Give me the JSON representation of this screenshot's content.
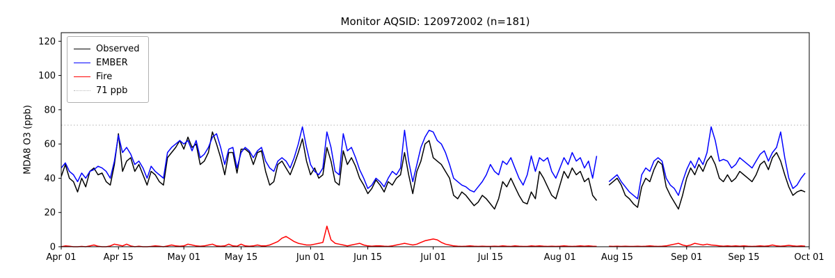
{
  "chart_data": {
    "type": "line",
    "title": "Monitor AQSID: 120972002 (n=181)",
    "xlabel": "",
    "ylabel": "MDA8 O3 (ppb)",
    "ylim": [
      0,
      125
    ],
    "yticks": [
      0,
      20,
      40,
      60,
      80,
      100,
      120
    ],
    "x_range_days": [
      0,
      183
    ],
    "x_ticks": [
      {
        "label": "Apr 01",
        "day": 0
      },
      {
        "label": "Apr 15",
        "day": 14
      },
      {
        "label": "May 01",
        "day": 30
      },
      {
        "label": "May 15",
        "day": 44
      },
      {
        "label": "Jun 01",
        "day": 61
      },
      {
        "label": "Jun 15",
        "day": 75
      },
      {
        "label": "Jul 01",
        "day": 91
      },
      {
        "label": "Jul 15",
        "day": 105
      },
      {
        "label": "Aug 01",
        "day": 122
      },
      {
        "label": "Aug 15",
        "day": 136
      },
      {
        "label": "Sep 01",
        "day": 153
      },
      {
        "label": "Sep 15",
        "day": 167
      },
      {
        "label": "Oct 01",
        "day": 183
      }
    ],
    "threshold": {
      "label": "71 ppb",
      "value": 71,
      "color": "#b8b8b8"
    },
    "legend_position": "upper-left",
    "grid": false,
    "series": [
      {
        "name": "Observed",
        "color": "#000000",
        "values": [
          41,
          48,
          40,
          38,
          32,
          40,
          35,
          44,
          46,
          42,
          43,
          38,
          36,
          48,
          66,
          44,
          50,
          52,
          44,
          48,
          42,
          36,
          44,
          42,
          38,
          36,
          52,
          55,
          58,
          62,
          57,
          64,
          58,
          60,
          48,
          50,
          55,
          67,
          60,
          52,
          42,
          55,
          55,
          43,
          57,
          57,
          55,
          48,
          55,
          56,
          44,
          36,
          38,
          48,
          50,
          46,
          42,
          48,
          55,
          63,
          50,
          42,
          46,
          40,
          42,
          58,
          50,
          38,
          36,
          56,
          48,
          52,
          47,
          40,
          36,
          31,
          34,
          39,
          36,
          32,
          38,
          36,
          40,
          42,
          55,
          42,
          31,
          44,
          50,
          60,
          62,
          52,
          50,
          48,
          44,
          40,
          30,
          28,
          32,
          30,
          27,
          24,
          26,
          30,
          28,
          25,
          22,
          28,
          38,
          35,
          40,
          35,
          30,
          26,
          25,
          32,
          28,
          44,
          40,
          35,
          30,
          28,
          36,
          44,
          40,
          46,
          42,
          44,
          38,
          40,
          30,
          27,
          null,
          null,
          36,
          38,
          40,
          36,
          30,
          28,
          25,
          23,
          35,
          40,
          38,
          45,
          50,
          48,
          35,
          30,
          26,
          22,
          30,
          40,
          46,
          42,
          48,
          44,
          50,
          53,
          48,
          40,
          38,
          42,
          38,
          40,
          44,
          42,
          40,
          38,
          42,
          48,
          50,
          45,
          52,
          55,
          50,
          42,
          35,
          30,
          32,
          33,
          32
        ]
      },
      {
        "name": "EMBER",
        "color": "#0000ff",
        "values": [
          46,
          49,
          44,
          42,
          38,
          43,
          40,
          44,
          45,
          47,
          46,
          44,
          40,
          50,
          65,
          55,
          58,
          54,
          48,
          50,
          46,
          40,
          47,
          44,
          42,
          40,
          55,
          58,
          60,
          62,
          60,
          62,
          56,
          62,
          52,
          54,
          58,
          64,
          66,
          58,
          48,
          57,
          58,
          46,
          55,
          58,
          56,
          52,
          56,
          58,
          50,
          46,
          44,
          50,
          52,
          50,
          46,
          52,
          60,
          70,
          58,
          48,
          44,
          42,
          46,
          67,
          58,
          44,
          42,
          66,
          56,
          58,
          52,
          45,
          40,
          34,
          36,
          40,
          38,
          35,
          40,
          44,
          42,
          46,
          68,
          50,
          38,
          48,
          58,
          64,
          68,
          67,
          62,
          60,
          55,
          48,
          40,
          38,
          36,
          35,
          33,
          32,
          35,
          38,
          42,
          48,
          44,
          42,
          50,
          48,
          52,
          46,
          40,
          36,
          42,
          53,
          44,
          52,
          50,
          52,
          44,
          40,
          46,
          52,
          48,
          55,
          50,
          52,
          46,
          50,
          40,
          53,
          null,
          null,
          38,
          40,
          42,
          38,
          35,
          32,
          30,
          28,
          42,
          46,
          44,
          50,
          52,
          50,
          40,
          36,
          34,
          30,
          38,
          45,
          50,
          46,
          52,
          48,
          55,
          70,
          62,
          50,
          51,
          50,
          46,
          48,
          52,
          50,
          48,
          46,
          50,
          54,
          56,
          50,
          55,
          58,
          67,
          52,
          40,
          34,
          36,
          40,
          43
        ]
      },
      {
        "name": "Fire",
        "color": "#ff0000",
        "values": [
          0,
          0.5,
          0.3,
          0,
          0,
          0.2,
          0,
          0.5,
          1,
          0.3,
          0,
          0,
          0.5,
          1.5,
          1,
          0.5,
          1.5,
          0.5,
          0,
          0.3,
          0,
          0,
          0.2,
          0.5,
          0.3,
          0,
          0.5,
          1,
          0.5,
          0.3,
          0.5,
          1.5,
          1,
          0.5,
          0.3,
          0.5,
          1,
          1.5,
          0.5,
          0.3,
          0.5,
          1.5,
          0.5,
          0.3,
          1.5,
          0.5,
          0.3,
          0.5,
          1,
          0.5,
          0.5,
          1,
          2,
          3,
          5,
          6,
          4.5,
          3,
          2,
          1.5,
          1,
          1,
          1.5,
          2,
          2.5,
          12,
          4,
          2,
          1.5,
          1,
          0.5,
          1,
          1.5,
          2,
          1,
          0.5,
          0.3,
          0.5,
          0.5,
          0.3,
          0.2,
          0.5,
          1,
          1.5,
          2,
          1.5,
          1,
          1.5,
          2.5,
          3.5,
          4,
          4.5,
          4,
          2.5,
          1.5,
          1,
          0.5,
          0.3,
          0.2,
          0.3,
          0.5,
          0.3,
          0.2,
          0.3,
          0.2,
          0.2,
          0.3,
          0.2,
          0.5,
          0.3,
          0.2,
          0.5,
          0.3,
          0.2,
          0.2,
          0.5,
          0.3,
          0.5,
          0.3,
          0.2,
          0.3,
          0.2,
          0.3,
          0.5,
          0.3,
          0.2,
          0.3,
          0.5,
          0.3,
          0.5,
          0.3,
          0.2,
          null,
          null,
          0.3,
          0.2,
          0.3,
          0.2,
          0.3,
          0.2,
          0.2,
          0.3,
          0.2,
          0.3,
          0.5,
          0.3,
          0.2,
          0.3,
          0.5,
          1,
          1.5,
          2,
          1,
          0.5,
          1,
          2,
          1.5,
          1,
          1.5,
          1,
          0.8,
          0.5,
          0.3,
          0.5,
          0.3,
          0.5,
          0.3,
          0.5,
          0.3,
          0.2,
          0.3,
          0.5,
          0.3,
          0.5,
          1,
          0.5,
          0.3,
          0.5,
          0.8,
          0.5,
          0.3,
          0.5,
          0.3
        ]
      }
    ]
  }
}
